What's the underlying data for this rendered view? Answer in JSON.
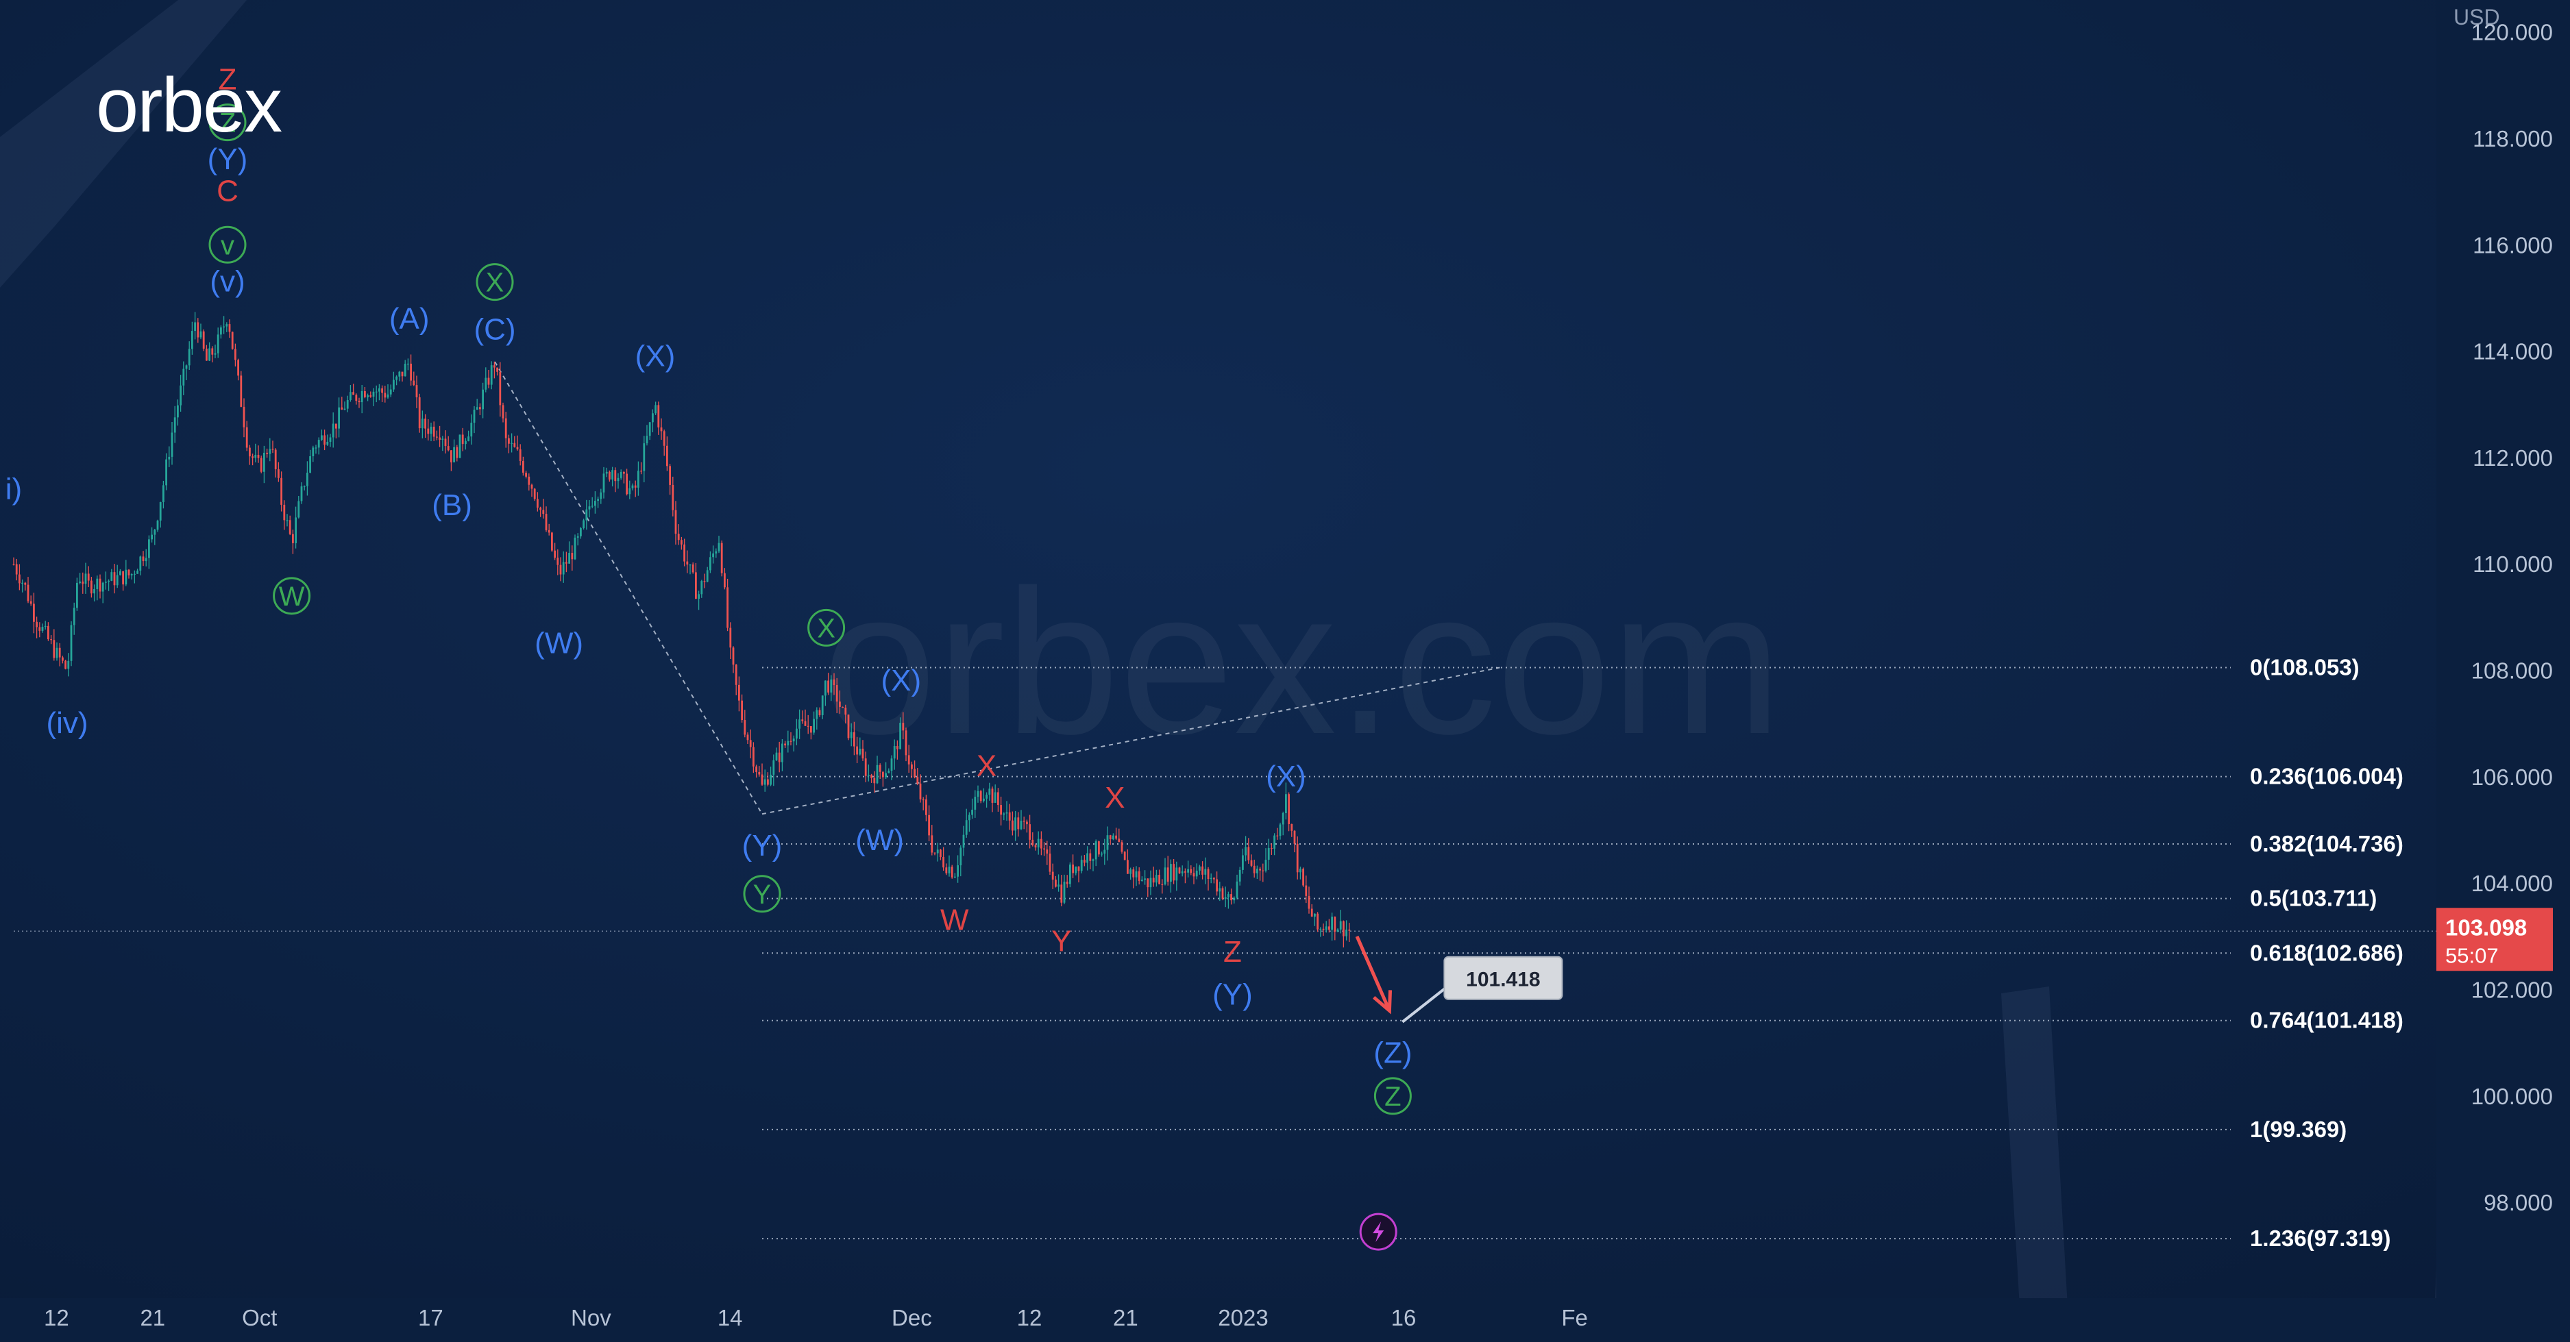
{
  "brand": {
    "logo_text": "orbex",
    "watermark": "orbex.com"
  },
  "colors": {
    "background": "#0b1f3e",
    "wave_blue": "#3f7cf0",
    "wave_green": "#3daa55",
    "wave_red": "#e04545",
    "candle_up": "#26a69a",
    "candle_down": "#ef5350",
    "price_badge": "#e5494a",
    "forecast_arrow": "#f05050"
  },
  "chart_data": {
    "type": "candlestick",
    "currency": "USD",
    "ylim": [
      96.2,
      120.6
    ],
    "y_ticks": [
      {
        "value": 120.0,
        "label": "120.000"
      },
      {
        "value": 118.0,
        "label": "118.000"
      },
      {
        "value": 116.0,
        "label": "116.000"
      },
      {
        "value": 114.0,
        "label": "114.000"
      },
      {
        "value": 112.0,
        "label": "112.000"
      },
      {
        "value": 110.0,
        "label": "110.000"
      },
      {
        "value": 108.0,
        "label": "108.000"
      },
      {
        "value": 106.0,
        "label": "106.000"
      },
      {
        "value": 104.0,
        "label": "104.000"
      },
      {
        "value": 102.0,
        "label": "102.000"
      },
      {
        "value": 100.0,
        "label": "100.000"
      },
      {
        "value": 98.0,
        "label": "98.000"
      }
    ],
    "x_ticks": [
      {
        "t": "2022-09-12",
        "label": "12"
      },
      {
        "t": "2022-09-21",
        "label": "21"
      },
      {
        "t": "2022-10-01",
        "label": "Oct"
      },
      {
        "t": "2022-10-17",
        "label": "17"
      },
      {
        "t": "2022-11-01",
        "label": "Nov"
      },
      {
        "t": "2022-11-14",
        "label": "14"
      },
      {
        "t": "2022-12-01",
        "label": "Dec"
      },
      {
        "t": "2022-12-12",
        "label": "12"
      },
      {
        "t": "2022-12-21",
        "label": "21"
      },
      {
        "t": "2023-01-01",
        "label": "2023"
      },
      {
        "t": "2023-01-16",
        "label": "16"
      },
      {
        "t": "2023-02-01",
        "label": "Fe"
      }
    ],
    "path": [
      [
        "2022-09-08",
        110.0
      ],
      [
        "2022-09-09",
        109.6
      ],
      [
        "2022-09-10",
        109.0
      ],
      [
        "2022-09-12",
        108.3
      ],
      [
        "2022-09-13",
        108.0
      ],
      [
        "2022-09-14",
        109.8
      ],
      [
        "2022-09-15",
        109.6
      ],
      [
        "2022-09-17",
        109.7
      ],
      [
        "2022-09-19",
        109.8
      ],
      [
        "2022-09-21",
        110.5
      ],
      [
        "2022-09-22",
        111.5
      ],
      [
        "2022-09-23",
        112.7
      ],
      [
        "2022-09-24",
        113.6
      ],
      [
        "2022-09-25",
        114.6
      ],
      [
        "2022-09-26",
        113.8
      ],
      [
        "2022-09-27",
        114.1
      ],
      [
        "2022-09-28",
        114.7
      ],
      [
        "2022-09-29",
        113.4
      ],
      [
        "2022-09-30",
        112.1
      ],
      [
        "2022-10-01",
        111.8
      ],
      [
        "2022-10-02",
        112.3
      ],
      [
        "2022-10-03",
        111.2
      ],
      [
        "2022-10-04",
        110.4
      ],
      [
        "2022-10-05",
        111.4
      ],
      [
        "2022-10-06",
        112.2
      ],
      [
        "2022-10-08",
        112.6
      ],
      [
        "2022-10-09",
        113.0
      ],
      [
        "2022-10-11",
        113.3
      ],
      [
        "2022-10-13",
        113.2
      ],
      [
        "2022-10-15",
        113.8
      ],
      [
        "2022-10-16",
        112.6
      ],
      [
        "2022-10-18",
        112.5
      ],
      [
        "2022-10-19",
        112.0
      ],
      [
        "2022-10-21",
        112.7
      ],
      [
        "2022-10-23",
        113.8
      ],
      [
        "2022-10-24",
        112.3
      ],
      [
        "2022-10-25",
        112.1
      ],
      [
        "2022-10-26",
        111.7
      ],
      [
        "2022-10-27",
        111.2
      ],
      [
        "2022-10-28",
        110.5
      ],
      [
        "2022-10-29",
        109.8
      ],
      [
        "2022-10-31",
        110.5
      ],
      [
        "2022-11-01",
        111.2
      ],
      [
        "2022-11-03",
        111.8
      ],
      [
        "2022-11-05",
        111.3
      ],
      [
        "2022-11-07",
        113.0
      ],
      [
        "2022-11-08",
        112.0
      ],
      [
        "2022-11-09",
        110.6
      ],
      [
        "2022-11-10",
        110.0
      ],
      [
        "2022-11-11",
        109.4
      ],
      [
        "2022-11-13",
        110.5
      ],
      [
        "2022-11-14",
        108.3
      ],
      [
        "2022-11-15",
        107.2
      ],
      [
        "2022-11-16",
        106.5
      ],
      [
        "2022-11-17",
        105.8
      ],
      [
        "2022-11-18",
        106.2
      ],
      [
        "2022-11-20",
        106.9
      ],
      [
        "2022-11-22",
        107.0
      ],
      [
        "2022-11-23",
        107.8
      ],
      [
        "2022-11-24",
        107.5
      ],
      [
        "2022-11-25",
        106.9
      ],
      [
        "2022-11-27",
        106.0
      ],
      [
        "2022-11-29",
        106.2
      ],
      [
        "2022-11-30",
        106.9
      ],
      [
        "2022-12-01",
        106.1
      ],
      [
        "2022-12-02",
        105.5
      ],
      [
        "2022-12-03",
        104.6
      ],
      [
        "2022-12-05",
        104.2
      ],
      [
        "2022-12-06",
        105.0
      ],
      [
        "2022-12-07",
        105.6
      ],
      [
        "2022-12-08",
        105.8
      ],
      [
        "2022-12-10",
        105.2
      ],
      [
        "2022-12-12",
        105.0
      ],
      [
        "2022-12-13",
        104.6
      ],
      [
        "2022-12-14",
        104.3
      ],
      [
        "2022-12-15",
        103.8
      ],
      [
        "2022-12-16",
        104.3
      ],
      [
        "2022-12-18",
        104.6
      ],
      [
        "2022-12-20",
        104.8
      ],
      [
        "2022-12-21",
        104.3
      ],
      [
        "2022-12-23",
        104.0
      ],
      [
        "2022-12-25",
        104.2
      ],
      [
        "2022-12-27",
        104.3
      ],
      [
        "2022-12-29",
        104.1
      ],
      [
        "2022-12-31",
        103.6
      ],
      [
        "2023-01-01",
        104.6
      ],
      [
        "2023-01-02",
        104.2
      ],
      [
        "2023-01-03",
        104.4
      ],
      [
        "2023-01-04",
        104.9
      ],
      [
        "2023-01-05",
        105.6
      ],
      [
        "2023-01-06",
        104.4
      ],
      [
        "2023-01-07",
        103.6
      ],
      [
        "2023-01-08",
        103.1
      ],
      [
        "2023-01-09",
        103.3
      ],
      [
        "2023-01-10",
        103.2
      ],
      [
        "2023-01-11",
        103.1
      ]
    ],
    "fib_levels": [
      {
        "ratio": "0",
        "value": 108.053,
        "label": "0(108.053)"
      },
      {
        "ratio": "0.236",
        "value": 106.004,
        "label": "0.236(106.004)"
      },
      {
        "ratio": "0.382",
        "value": 104.736,
        "label": "0.382(104.736)"
      },
      {
        "ratio": "0.5",
        "value": 103.711,
        "label": "0.5(103.711)"
      },
      {
        "ratio": "0.618",
        "value": 102.686,
        "label": "0.618(102.686)"
      },
      {
        "ratio": "0.764",
        "value": 101.418,
        "label": "0.764(101.418)"
      },
      {
        "ratio": "1",
        "value": 99.369,
        "label": "1(99.369)"
      },
      {
        "ratio": "1.236",
        "value": 97.319,
        "label": "1.236(97.319)"
      }
    ],
    "fib_start": "2022-11-17",
    "dotted_lines": [
      {
        "from": [
          "2022-10-23",
          113.8
        ],
        "to": [
          "2022-11-17",
          105.3
        ]
      },
      {
        "from": [
          "2022-11-17",
          105.3
        ],
        "to": [
          "2023-01-25",
          108.053
        ]
      }
    ],
    "current_price": {
      "value": 103.098,
      "label": "103.098",
      "countdown": "55:07"
    },
    "target": {
      "value": 101.418,
      "label": "101.418",
      "t": "2023-01-15"
    },
    "forecast_arrow": {
      "from": [
        "2023-01-11",
        103.0
      ],
      "to": [
        "2023-01-15",
        101.5
      ]
    },
    "wave_labels": [
      {
        "text": "i)",
        "t": "2022-09-08",
        "y": 111.4,
        "color": "blue"
      },
      {
        "text": "(iv)",
        "t": "2022-09-13",
        "y": 107.0,
        "color": "blue"
      },
      {
        "text": "Z",
        "t": "2022-09-28",
        "y": 119.1,
        "color": "red"
      },
      {
        "text": "Z",
        "t": "2022-09-28",
        "y": 118.3,
        "color": "green",
        "circle": true
      },
      {
        "text": "(Y)",
        "t": "2022-09-28",
        "y": 117.6,
        "color": "blue"
      },
      {
        "text": "C",
        "t": "2022-09-28",
        "y": 117.0,
        "color": "red"
      },
      {
        "text": "v",
        "t": "2022-09-28",
        "y": 116.0,
        "color": "green",
        "circle": true
      },
      {
        "text": "(v)",
        "t": "2022-09-28",
        "y": 115.3,
        "color": "blue"
      },
      {
        "text": "W",
        "t": "2022-10-04",
        "y": 109.4,
        "color": "green",
        "circle": true
      },
      {
        "text": "(A)",
        "t": "2022-10-15",
        "y": 114.6,
        "color": "blue"
      },
      {
        "text": "(B)",
        "t": "2022-10-19",
        "y": 111.1,
        "color": "blue"
      },
      {
        "text": "X",
        "t": "2022-10-23",
        "y": 115.3,
        "color": "green",
        "circle": true
      },
      {
        "text": "(C)",
        "t": "2022-10-23",
        "y": 114.4,
        "color": "blue"
      },
      {
        "text": "(W)",
        "t": "2022-10-29",
        "y": 108.5,
        "color": "blue"
      },
      {
        "text": "(X)",
        "t": "2022-11-07",
        "y": 113.9,
        "color": "blue"
      },
      {
        "text": "X",
        "t": "2022-11-23",
        "y": 108.8,
        "color": "green",
        "circle": true
      },
      {
        "text": "(Y)",
        "t": "2022-11-17",
        "y": 104.7,
        "color": "blue"
      },
      {
        "text": "Y",
        "t": "2022-11-17",
        "y": 103.8,
        "color": "green",
        "circle": true
      },
      {
        "text": "(X)",
        "t": "2022-11-30",
        "y": 107.8,
        "color": "blue"
      },
      {
        "text": "(W)",
        "t": "2022-11-28",
        "y": 104.8,
        "color": "blue"
      },
      {
        "text": "W",
        "t": "2022-12-05",
        "y": 103.3,
        "color": "red"
      },
      {
        "text": "X",
        "t": "2022-12-08",
        "y": 106.2,
        "color": "red"
      },
      {
        "text": "Y",
        "t": "2022-12-15",
        "y": 102.9,
        "color": "red"
      },
      {
        "text": "X",
        "t": "2022-12-20",
        "y": 105.6,
        "color": "red"
      },
      {
        "text": "Z",
        "t": "2022-12-31",
        "y": 102.7,
        "color": "red"
      },
      {
        "text": "(Y)",
        "t": "2022-12-31",
        "y": 101.9,
        "color": "blue"
      },
      {
        "text": "(X)",
        "t": "2023-01-05",
        "y": 106.0,
        "color": "blue"
      },
      {
        "text": "(Z)",
        "t": "2023-01-15",
        "y": 100.8,
        "color": "blue"
      },
      {
        "text": "Z",
        "t": "2023-01-15",
        "y": 100.0,
        "color": "green",
        "circle": true
      }
    ]
  }
}
